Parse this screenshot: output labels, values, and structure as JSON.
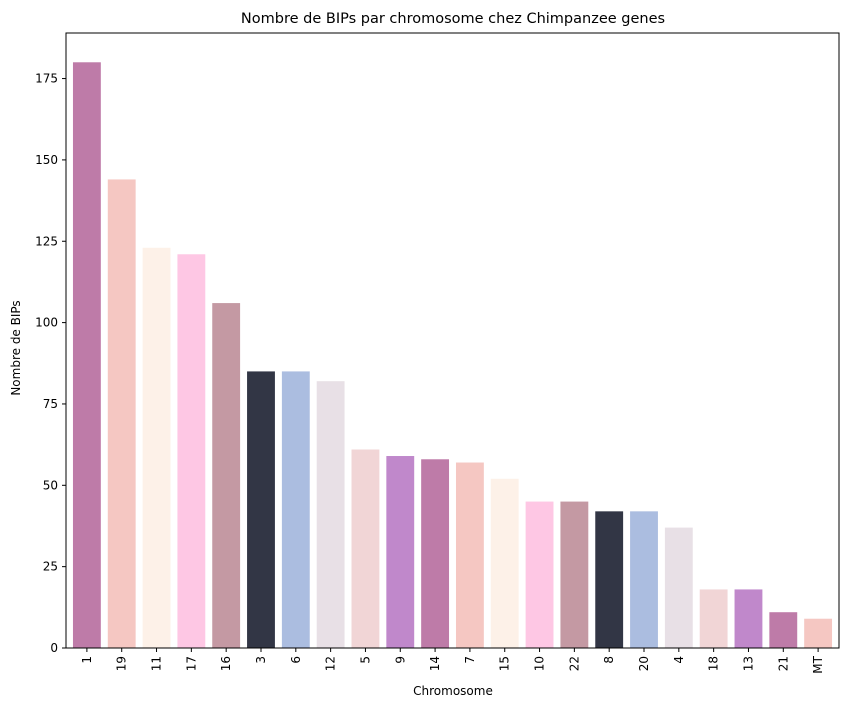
{
  "chart_data": {
    "type": "bar",
    "title": "Nombre de BIPs par chromosome chez Chimpanzee genes",
    "xlabel": "Chromosome",
    "ylabel": "Nombre de BIPs",
    "categories": [
      "1",
      "19",
      "11",
      "17",
      "16",
      "3",
      "6",
      "12",
      "5",
      "9",
      "14",
      "7",
      "15",
      "10",
      "22",
      "8",
      "20",
      "4",
      "18",
      "13",
      "21",
      "MT"
    ],
    "values": [
      180,
      144,
      123,
      121,
      106,
      85,
      85,
      82,
      61,
      59,
      58,
      57,
      52,
      45,
      45,
      42,
      42,
      37,
      18,
      18,
      11,
      9
    ],
    "colors": [
      "#be7ba8",
      "#f5c7c2",
      "#fdf1e8",
      "#fec7e4",
      "#c499a3",
      "#323645",
      "#abbde0",
      "#e8e0e6",
      "#f1d5d6",
      "#c088cb",
      "#be7ba8",
      "#f5c7c2",
      "#fdf1e8",
      "#fec7e4",
      "#c499a3",
      "#323645",
      "#abbde0",
      "#e8e0e6",
      "#f1d5d6",
      "#c088cb",
      "#be7ba8",
      "#f5c7c2"
    ],
    "ylim": [
      0,
      189
    ],
    "yticks": [
      0,
      25,
      50,
      75,
      100,
      125,
      150,
      175
    ],
    "grid": false,
    "legend": "none"
  }
}
